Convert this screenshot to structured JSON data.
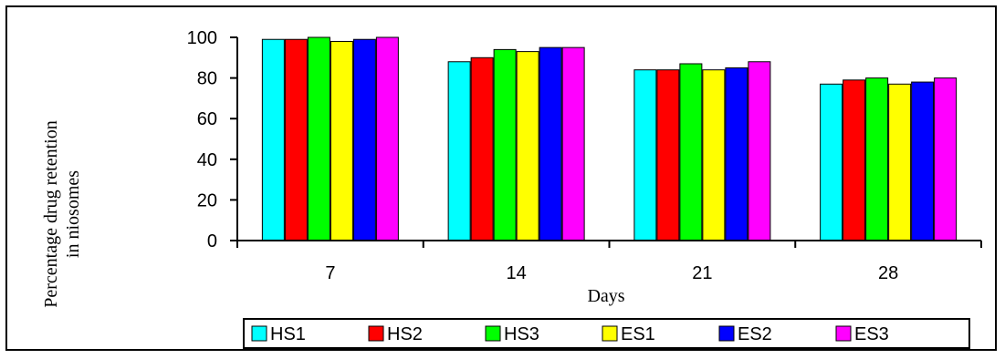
{
  "chart_data": {
    "type": "bar",
    "title": "",
    "xlabel": "Days",
    "ylabel_lines": [
      "Percentage drug retention",
      "in niosomes"
    ],
    "categories": [
      "7",
      "14",
      "21",
      "28"
    ],
    "ylim": [
      0,
      100
    ],
    "yticks": [
      0,
      20,
      40,
      60,
      80,
      100
    ],
    "grid": false,
    "legend_position": "bottom",
    "series": [
      {
        "name": "HS1",
        "color": "#00ffff",
        "values": [
          99,
          88,
          84,
          77
        ]
      },
      {
        "name": "HS2",
        "color": "#ff0000",
        "values": [
          99,
          90,
          84,
          79
        ]
      },
      {
        "name": "HS3",
        "color": "#00ff00",
        "values": [
          100,
          94,
          87,
          80
        ]
      },
      {
        "name": "ES1",
        "color": "#ffff00",
        "values": [
          98,
          93,
          84,
          77
        ]
      },
      {
        "name": "ES2",
        "color": "#0000ff",
        "values": [
          99,
          95,
          85,
          78
        ]
      },
      {
        "name": "ES3",
        "color": "#ff00ff",
        "values": [
          100,
          95,
          88,
          80
        ]
      }
    ]
  }
}
